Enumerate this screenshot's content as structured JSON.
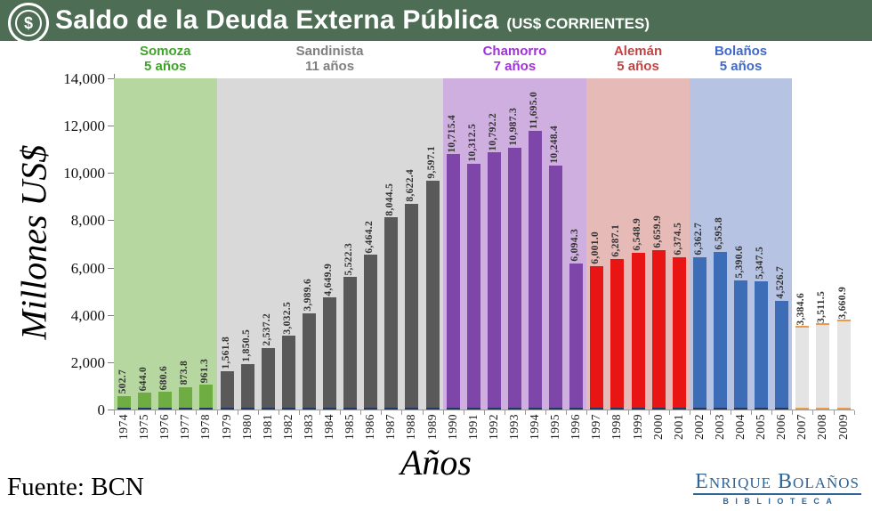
{
  "header": {
    "title": "Saldo de la Deuda Externa Pública",
    "subtitle": "(US$ CORRIENTES)",
    "icon": "dollar-coin-icon",
    "background_color": "#4d6d55"
  },
  "chart_data": {
    "type": "bar",
    "title": "Saldo de la Deuda Externa Pública (US$ CORRIENTES)",
    "xlabel": "Años",
    "ylabel": "Millones US$",
    "ylim": [
      0,
      14000
    ],
    "ytick_interval": 2000,
    "yticks": [
      "0",
      "2,000",
      "4,000",
      "6,000",
      "8,000",
      "10,000",
      "12,000",
      "14,000"
    ],
    "grid": false,
    "legend": false,
    "categories": [
      "1974",
      "1975",
      "1976",
      "1977",
      "1978",
      "1979",
      "1980",
      "1981",
      "1982",
      "1983",
      "1984",
      "1985",
      "1986",
      "1987",
      "1988",
      "1989",
      "1990",
      "1991",
      "1992",
      "1993",
      "1994",
      "1995",
      "1996",
      "1997",
      "1998",
      "1999",
      "2000",
      "2001",
      "2002",
      "2003",
      "2004",
      "2005",
      "2006",
      "2007",
      "2008",
      "2009"
    ],
    "values": [
      502.7,
      644.0,
      680.6,
      873.8,
      961.3,
      1561.8,
      1850.5,
      2537.2,
      3032.5,
      3989.6,
      4649.9,
      5522.3,
      6464.2,
      8044.5,
      8622.4,
      9597.1,
      10715.4,
      10312.5,
      10792.2,
      10987.3,
      11695.0,
      10248.4,
      6094.3,
      6001.0,
      6287.1,
      6548.9,
      6659.9,
      6374.5,
      6362.7,
      6595.8,
      5390.6,
      5347.5,
      4526.7,
      3384.6,
      3511.5,
      3660.9
    ],
    "value_labels": [
      "502.7",
      "644.0",
      "680.6",
      "873.8",
      "961.3",
      "1,561.8",
      "1,850.5",
      "2,537.2",
      "3,032.5",
      "3,989.6",
      "4,649.9",
      "5,522.3",
      "6,464.2",
      "8,044.5",
      "8,622.4",
      "9,597.1",
      "10,715.4",
      "10,312.5",
      "10,792.2",
      "10,987.3",
      "11,695.0",
      "10,248.4",
      "6,094.3",
      "6,001.0",
      "6,287.1",
      "6,548.9",
      "6,659.9",
      "6,374.5",
      "6,362.7",
      "6,595.8",
      "5,390.6",
      "5,347.5",
      "4,526.7",
      "3,384.6",
      "3,511.5",
      "3,660.9"
    ],
    "periods": [
      {
        "name": "Somoza",
        "duration": "5 años",
        "years": 5,
        "label_color": "#3fa32a",
        "band_color": "#b6d7a0",
        "bar_color": "#6fad42"
      },
      {
        "name": "Sandinista",
        "duration": "11 años",
        "years": 11,
        "label_color": "#7f7f7f",
        "band_color": "#d9d9d9",
        "bar_color": "#595959"
      },
      {
        "name": "Chamorro",
        "duration": "7 años",
        "years": 7,
        "label_color": "#a031da",
        "band_color": "#ceafe0",
        "bar_color": "#7e46a8"
      },
      {
        "name": "Alemán",
        "duration": "5 años",
        "years": 5,
        "label_color": "#bf4545",
        "band_color": "#e6bab6",
        "bar_color": "#e91414"
      },
      {
        "name": "Bolaños",
        "duration": "5 años",
        "years": 5,
        "label_color": "#4169c8",
        "band_color": "#b7c3e3",
        "bar_color": "#3e6db8"
      },
      {
        "name": "",
        "duration": "",
        "years": 3,
        "label_color": "",
        "band_color": "",
        "bar_color": "#e4e4e4",
        "bar_border_color": "#eb9a4d"
      }
    ],
    "bar_base_color": "#1f3864"
  },
  "footer": {
    "source": "Fuente: BCN",
    "logo_line1": "Enrique Bolaños",
    "logo_line2": "BIBLIOTECA"
  }
}
